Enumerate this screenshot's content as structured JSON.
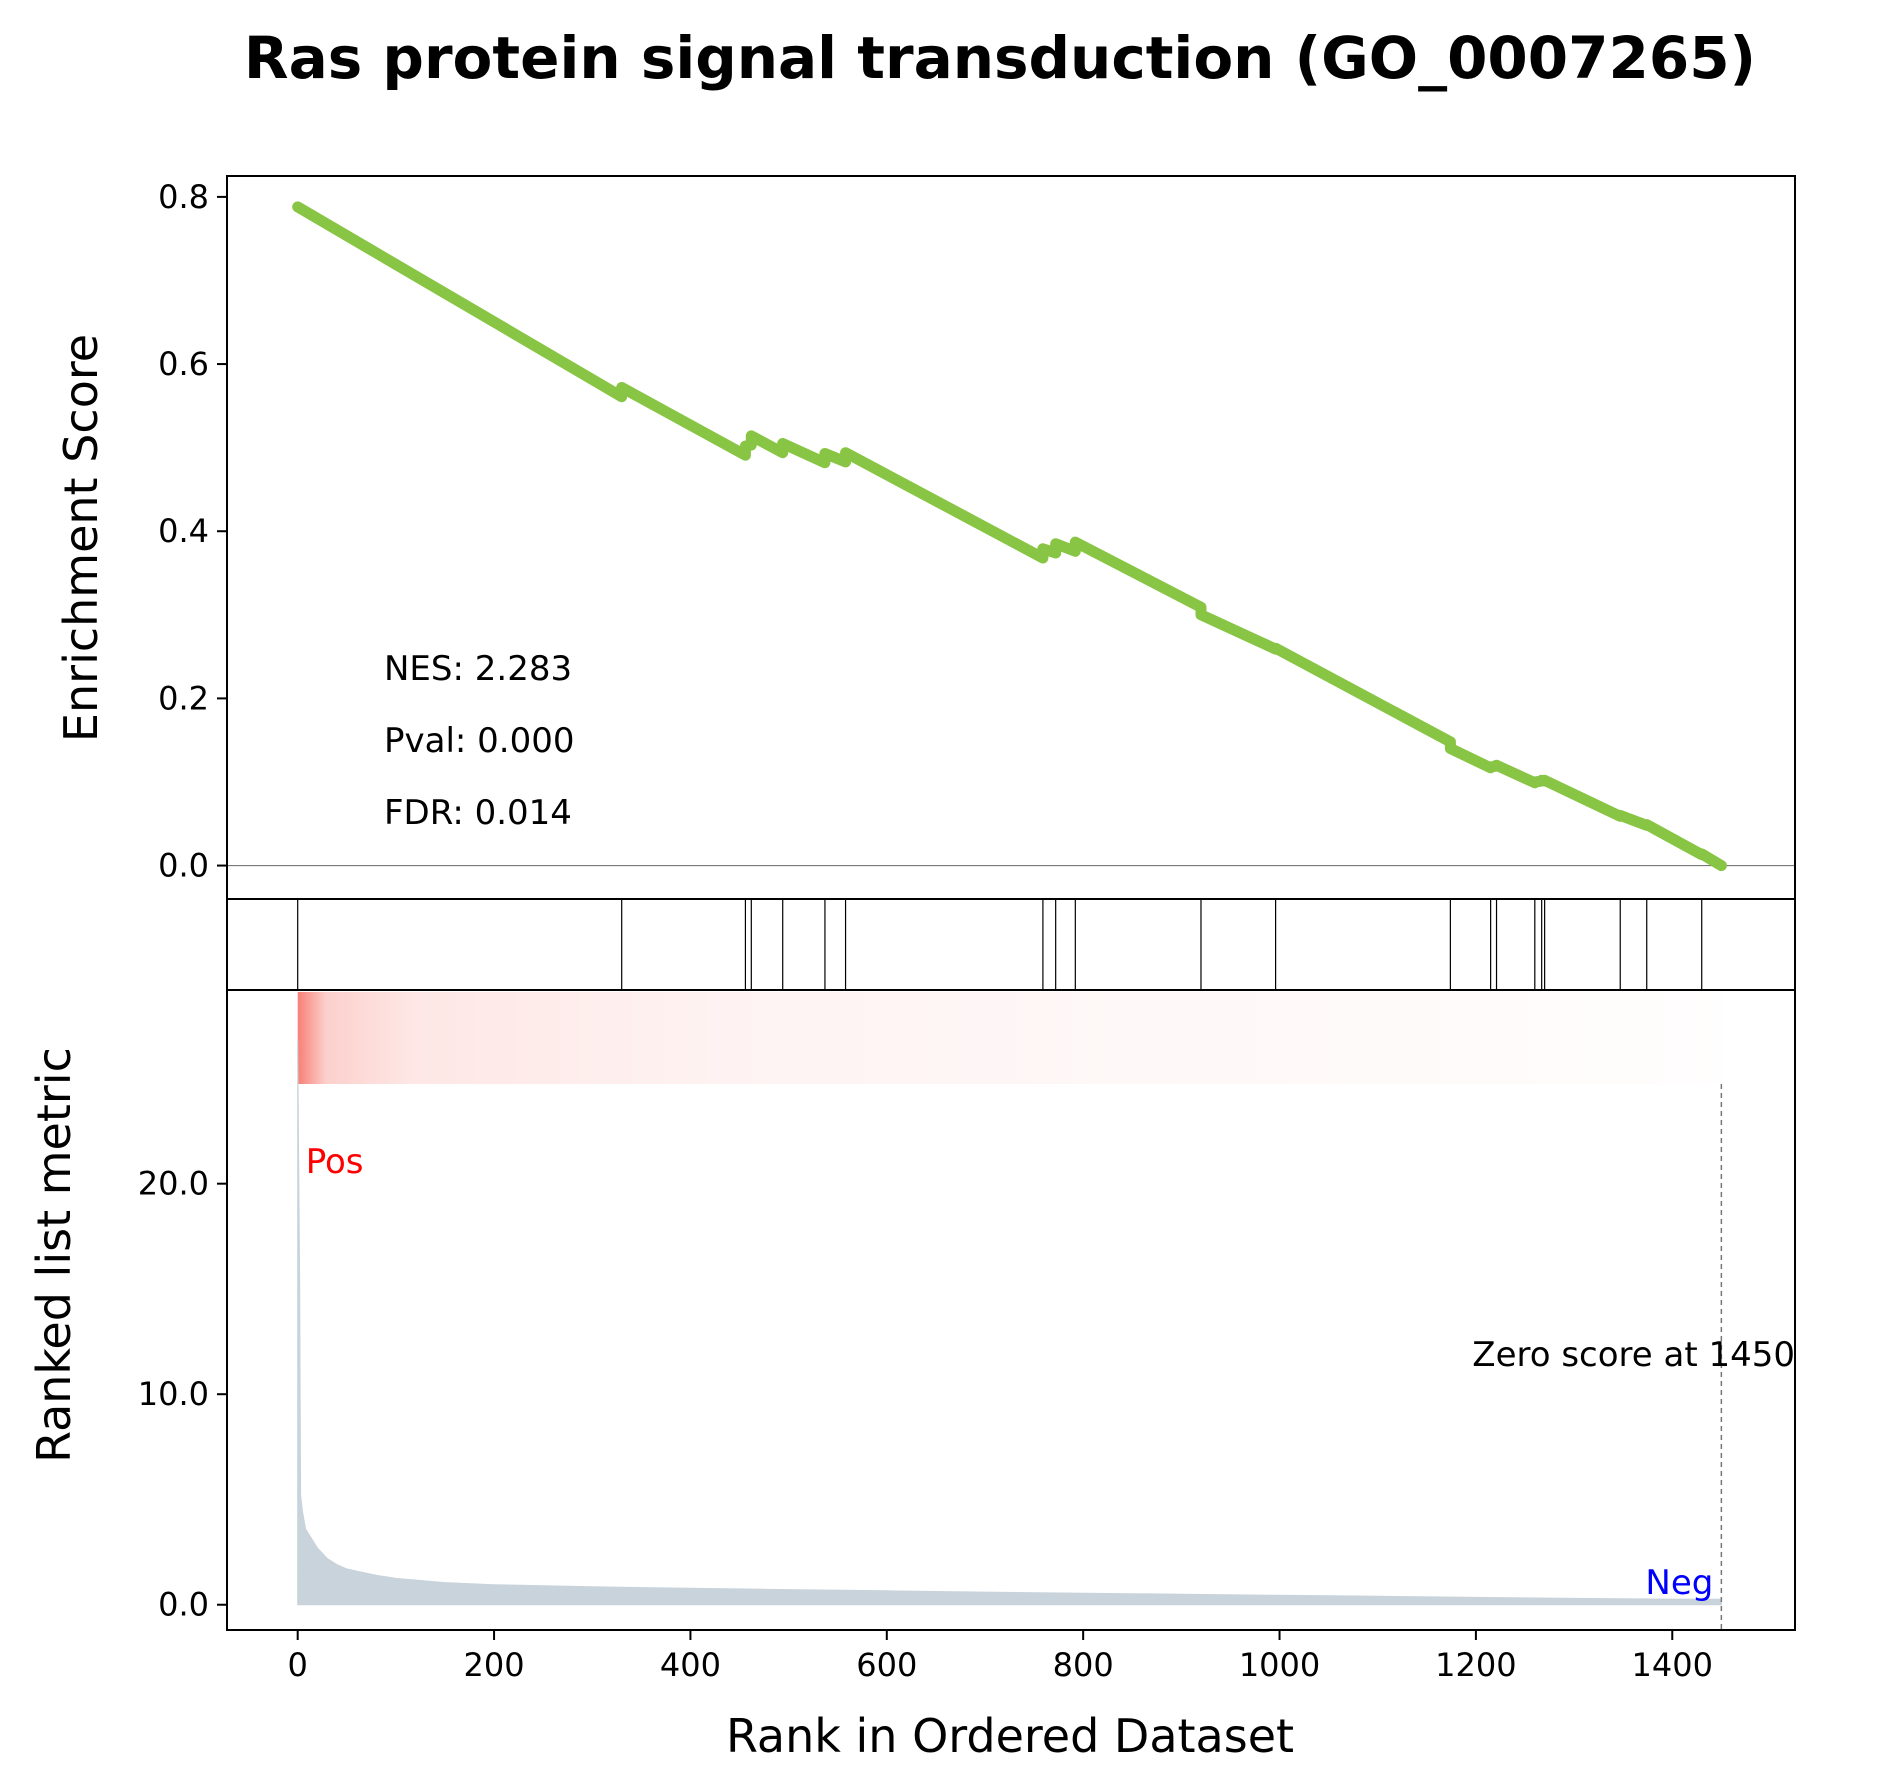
{
  "chart_data": {
    "type": "line",
    "title": "Ras protein signal transduction (GO_0007265)",
    "xlabel": "Rank in Ordered Dataset",
    "xlim": [
      -72,
      1525
    ],
    "x_ticks": [
      0,
      200,
      400,
      600,
      800,
      1000,
      1200,
      1400
    ],
    "x_tick_labels": [
      "0",
      "200",
      "400",
      "600",
      "800",
      "1000",
      "1200",
      "1400"
    ],
    "enrichment": {
      "ylabel": "Enrichment Score",
      "ylim": [
        -0.04,
        0.825
      ],
      "y_ticks": [
        0.0,
        0.2,
        0.4,
        0.6,
        0.8
      ],
      "y_tick_labels": [
        "0.0",
        "0.2",
        "0.4",
        "0.6",
        "0.8"
      ],
      "color": "#88c544",
      "series": [
        {
          "x": [
            0,
            330,
            330,
            456,
            456,
            462,
            462,
            494,
            494,
            537,
            537,
            558,
            558,
            759,
            759,
            772,
            772,
            792,
            792,
            920,
            920,
            996,
            996,
            1174,
            1174,
            1215,
            1215,
            1221,
            1221,
            1260,
            1260,
            1267,
            1267,
            1270,
            1270,
            1347,
            1347,
            1374,
            1374,
            1430,
            1430,
            1450
          ],
          "y": [
            0.788,
            0.561,
            0.572,
            0.491,
            0.502,
            0.503,
            0.514,
            0.494,
            0.505,
            0.482,
            0.493,
            0.483,
            0.494,
            0.368,
            0.379,
            0.374,
            0.385,
            0.376,
            0.387,
            0.309,
            0.3,
            0.259,
            0.26,
            0.148,
            0.14,
            0.117,
            0.118,
            0.119,
            0.12,
            0.099,
            0.1,
            0.101,
            0.102,
            0.101,
            0.102,
            0.059,
            0.06,
            0.048,
            0.049,
            0.013,
            0.014,
            0.0
          ]
        }
      ],
      "baseline": 0.0,
      "annotations": [
        "NES: 2.283",
        "Pval: 0.000",
        "FDR: 0.014"
      ]
    },
    "hits": [
      0,
      330,
      456,
      462,
      494,
      537,
      558,
      759,
      772,
      792,
      920,
      996,
      1174,
      1215,
      1221,
      1260,
      1267,
      1270,
      1347,
      1374,
      1430
    ],
    "ranked_metric": {
      "ylabel": "Ranked list metric",
      "ylim": [
        -1.2,
        29.2
      ],
      "y_ticks": [
        0.0,
        10.0,
        20.0
      ],
      "y_tick_labels": [
        "0.0",
        "10.0",
        "20.0"
      ],
      "fill_color": "#c8d3db",
      "x": [
        0,
        2,
        3,
        5,
        8,
        12,
        20,
        30,
        40,
        50,
        60,
        80,
        100,
        150,
        200,
        300,
        400,
        500,
        600,
        700,
        800,
        900,
        1000,
        1100,
        1200,
        1300,
        1400,
        1450
      ],
      "y": [
        26.8,
        15.0,
        5.2,
        4.4,
        3.6,
        3.3,
        2.7,
        2.2,
        1.9,
        1.7,
        1.6,
        1.4,
        1.25,
        1.05,
        0.95,
        0.85,
        0.78,
        0.72,
        0.66,
        0.6,
        0.55,
        0.5,
        0.45,
        0.4,
        0.35,
        0.3,
        0.27,
        0.26
      ],
      "labels": {
        "pos": "Pos",
        "neg": "Neg"
      },
      "pos_color": "#ff0000",
      "neg_color": "#0000ff",
      "zero_score_rank": 1450,
      "zero_score_text": "Zero score at 1450"
    },
    "heatmap_color": "#f7796f"
  }
}
